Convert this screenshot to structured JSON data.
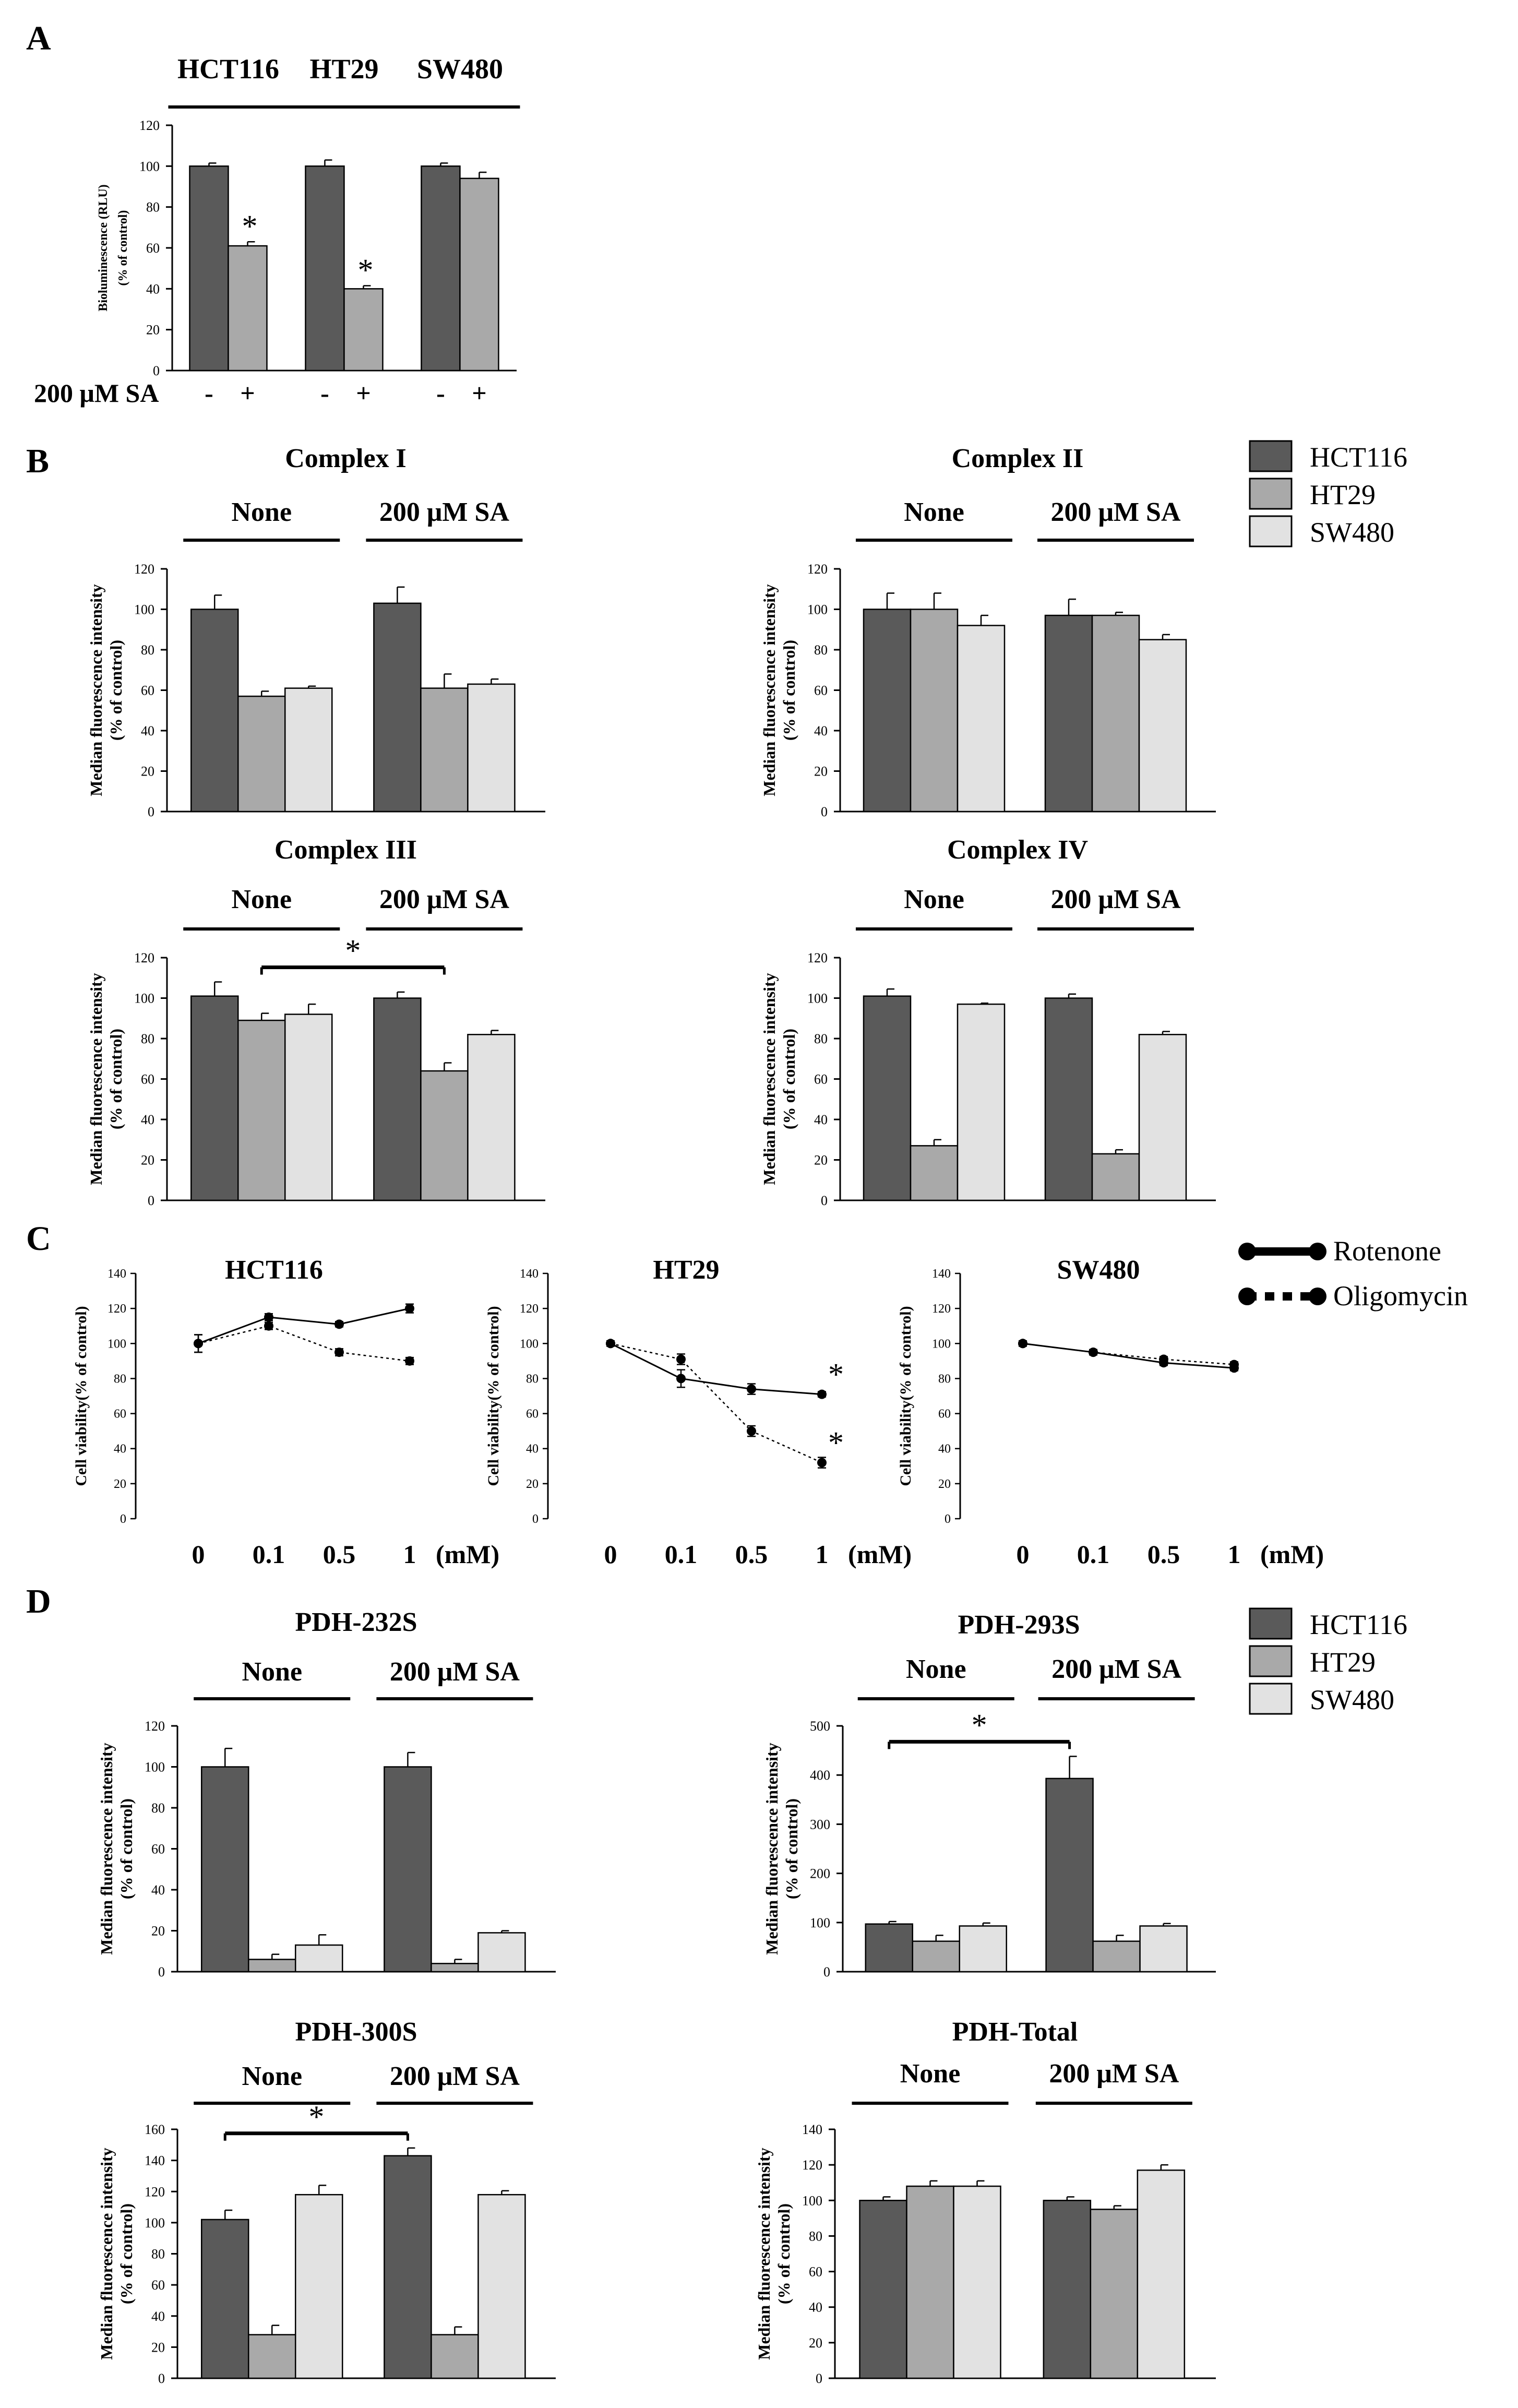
{
  "colors": {
    "HCT116": "#5a5a5a",
    "HT29": "#a9a9a9",
    "SW480": "#e2e2e2",
    "axis": "#000000"
  },
  "legend_B": {
    "items": [
      "HCT116",
      "HT29",
      "SW480"
    ]
  },
  "legend_C": {
    "items": [
      "Rotenone",
      "Oligomycin"
    ]
  },
  "legend_D": {
    "items": [
      "HCT116",
      "HT29",
      "SW480"
    ]
  },
  "panel_labels": {
    "A": "A",
    "B": "B",
    "C": "C",
    "D": "D"
  },
  "chart_data": [
    {
      "id": "A",
      "type": "bar",
      "title": "",
      "ylabel": "Bioluminescence (RLU)",
      "ylabel2": "(% of control)",
      "ylim": [
        0,
        120
      ],
      "yticks": [
        0,
        20,
        40,
        60,
        80,
        100,
        120
      ],
      "group_headers": [
        "HCT116",
        "HT29",
        "SW480"
      ],
      "x_prefix": "200 μM SA",
      "groups": [
        {
          "name": "HCT116",
          "bars": [
            {
              "label": "-",
              "value": 100,
              "err": 1.5,
              "series": "HCT116"
            },
            {
              "label": "+",
              "value": 61,
              "err": 2,
              "series": "HT29",
              "star": "*"
            }
          ]
        },
        {
          "name": "HT29",
          "bars": [
            {
              "label": "-",
              "value": 100,
              "err": 3,
              "series": "HCT116"
            },
            {
              "label": "+",
              "value": 40,
              "err": 1.5,
              "series": "HT29",
              "star": "*"
            }
          ]
        },
        {
          "name": "SW480",
          "bars": [
            {
              "label": "-",
              "value": 100,
              "err": 1.5,
              "series": "HCT116"
            },
            {
              "label": "+",
              "value": 94,
              "err": 3,
              "series": "HT29"
            }
          ]
        }
      ]
    },
    {
      "id": "B1",
      "type": "bar",
      "title": "Complex I",
      "ylabel": "Median fluorescence intensity",
      "ylabel2": "(% of control)",
      "ylim": [
        0,
        120
      ],
      "yticks": [
        0,
        20,
        40,
        60,
        80,
        100,
        120
      ],
      "group_headers": [
        "None",
        "200 μM SA"
      ],
      "groups": [
        {
          "name": "None",
          "bars": [
            {
              "series": "HCT116",
              "value": 100,
              "err": 7
            },
            {
              "series": "HT29",
              "value": 57,
              "err": 2.5
            },
            {
              "series": "SW480",
              "value": 61,
              "err": 1
            }
          ]
        },
        {
          "name": "200 μM SA",
          "bars": [
            {
              "series": "HCT116",
              "value": 103,
              "err": 8
            },
            {
              "series": "HT29",
              "value": 61,
              "err": 7
            },
            {
              "series": "SW480",
              "value": 63,
              "err": 2.5
            }
          ]
        }
      ]
    },
    {
      "id": "B2",
      "type": "bar",
      "title": "Complex II",
      "ylabel": "Median fluorescence intensity",
      "ylabel2": "(% of control)",
      "ylim": [
        0,
        120
      ],
      "yticks": [
        0,
        20,
        40,
        60,
        80,
        100,
        120
      ],
      "group_headers": [
        "None",
        "200 μM SA"
      ],
      "groups": [
        {
          "name": "None",
          "bars": [
            {
              "series": "HCT116",
              "value": 100,
              "err": 8
            },
            {
              "series": "HT29",
              "value": 100,
              "err": 8
            },
            {
              "series": "SW480",
              "value": 92,
              "err": 5
            }
          ]
        },
        {
          "name": "200 μM SA",
          "bars": [
            {
              "series": "HCT116",
              "value": 97,
              "err": 8
            },
            {
              "series": "HT29",
              "value": 97,
              "err": 1.5
            },
            {
              "series": "SW480",
              "value": 85,
              "err": 2.5
            }
          ]
        }
      ]
    },
    {
      "id": "B3",
      "type": "bar",
      "title": "Complex III",
      "ylabel": "Median fluorescence intensity",
      "ylabel2": "(% of control)",
      "ylim": [
        0,
        120
      ],
      "yticks": [
        0,
        20,
        40,
        60,
        80,
        100,
        120
      ],
      "group_headers": [
        "None",
        "200 μM SA"
      ],
      "sig": {
        "from": [
          0,
          1
        ],
        "to": [
          1,
          1
        ],
        "label": "*"
      },
      "groups": [
        {
          "name": "None",
          "bars": [
            {
              "series": "HCT116",
              "value": 101,
              "err": 7
            },
            {
              "series": "HT29",
              "value": 89,
              "err": 3.5
            },
            {
              "series": "SW480",
              "value": 92,
              "err": 5
            }
          ]
        },
        {
          "name": "200 μM SA",
          "bars": [
            {
              "series": "HCT116",
              "value": 100,
              "err": 3
            },
            {
              "series": "HT29",
              "value": 64,
              "err": 4
            },
            {
              "series": "SW480",
              "value": 82,
              "err": 2
            }
          ]
        }
      ]
    },
    {
      "id": "B4",
      "type": "bar",
      "title": "Complex IV",
      "ylabel": "Median fluorescence intensity",
      "ylabel2": "(% of control)",
      "ylim": [
        0,
        120
      ],
      "yticks": [
        0,
        20,
        40,
        60,
        80,
        100,
        120
      ],
      "group_headers": [
        "None",
        "200 μM SA"
      ],
      "groups": [
        {
          "name": "None",
          "bars": [
            {
              "series": "HCT116",
              "value": 101,
              "err": 3.5
            },
            {
              "series": "HT29",
              "value": 27,
              "err": 3
            },
            {
              "series": "SW480",
              "value": 97,
              "err": 0.5
            }
          ]
        },
        {
          "name": "200 μM SA",
          "bars": [
            {
              "series": "HCT116",
              "value": 100,
              "err": 2
            },
            {
              "series": "HT29",
              "value": 23,
              "err": 2
            },
            {
              "series": "SW480",
              "value": 82,
              "err": 1.5
            }
          ]
        }
      ]
    },
    {
      "id": "C1",
      "type": "line",
      "title": "HCT116",
      "ylabel": "Cell viability(% of control)",
      "ylim": [
        0,
        140
      ],
      "yticks": [
        0,
        20,
        40,
        60,
        80,
        100,
        120,
        140
      ],
      "categories": [
        "0",
        "0.1",
        "0.5",
        "1"
      ],
      "unit": "(mM)",
      "series": [
        {
          "name": "Rotenone",
          "style": "solid",
          "values": [
            100,
            115,
            111,
            120
          ],
          "err": [
            5,
            2,
            1.5,
            2.5
          ]
        },
        {
          "name": "Oligomycin",
          "style": "dotted",
          "values": [
            100,
            110,
            95,
            90
          ],
          "err": [
            5,
            2,
            2,
            2
          ]
        }
      ]
    },
    {
      "id": "C2",
      "type": "line",
      "title": "HT29",
      "ylabel": "Cell viability(% of control)",
      "ylim": [
        0,
        140
      ],
      "yticks": [
        0,
        20,
        40,
        60,
        80,
        100,
        120,
        140
      ],
      "categories": [
        "0",
        "0.1",
        "0.5",
        "1"
      ],
      "unit": "(mM)",
      "series": [
        {
          "name": "Rotenone",
          "style": "solid",
          "values": [
            100,
            80,
            74,
            71
          ],
          "err": [
            1.5,
            5,
            3,
            1.5
          ],
          "star_last": "*"
        },
        {
          "name": "Oligomycin",
          "style": "dotted",
          "values": [
            100,
            91,
            50,
            32
          ],
          "err": [
            1.5,
            3,
            3,
            3
          ],
          "star_last": "*"
        }
      ]
    },
    {
      "id": "C3",
      "type": "line",
      "title": "SW480",
      "ylabel": "Cell viability(% of control)",
      "ylim": [
        0,
        140
      ],
      "yticks": [
        0,
        20,
        40,
        60,
        80,
        100,
        120,
        140
      ],
      "categories": [
        "0",
        "0.1",
        "0.5",
        "1"
      ],
      "unit": "(mM)",
      "series": [
        {
          "name": "Rotenone",
          "style": "solid",
          "values": [
            100,
            95,
            89,
            86
          ],
          "err": [
            1.5,
            1.5,
            1.5,
            1.5
          ]
        },
        {
          "name": "Oligomycin",
          "style": "dotted",
          "values": [
            100,
            95,
            91,
            88
          ],
          "err": [
            1.5,
            1.5,
            1.5,
            1.5
          ]
        }
      ]
    },
    {
      "id": "D1",
      "type": "bar",
      "title": "PDH-232S",
      "ylabel": "Median fluorescence intensity",
      "ylabel2": "(% of control)",
      "ylim": [
        0,
        120
      ],
      "yticks": [
        0,
        20,
        40,
        60,
        80,
        100,
        120
      ],
      "group_headers": [
        "None",
        "200 μM SA"
      ],
      "groups": [
        {
          "name": "None",
          "bars": [
            {
              "series": "HCT116",
              "value": 100,
              "err": 9
            },
            {
              "series": "HT29",
              "value": 6,
              "err": 2.5
            },
            {
              "series": "SW480",
              "value": 13,
              "err": 5
            }
          ]
        },
        {
          "name": "200 μM SA",
          "bars": [
            {
              "series": "HCT116",
              "value": 100,
              "err": 7
            },
            {
              "series": "HT29",
              "value": 4,
              "err": 2
            },
            {
              "series": "SW480",
              "value": 19,
              "err": 1
            }
          ]
        }
      ]
    },
    {
      "id": "D2",
      "type": "bar",
      "title": "PDH-293S",
      "ylabel": "Median fluorescence intensity",
      "ylabel2": "(% of control)",
      "ylim": [
        0,
        500
      ],
      "yticks": [
        0,
        100,
        200,
        300,
        400,
        500
      ],
      "group_headers": [
        "None",
        "200 μM SA"
      ],
      "sig": {
        "from": [
          0,
          0
        ],
        "to": [
          1,
          0
        ],
        "label": "*"
      },
      "groups": [
        {
          "name": "None",
          "bars": [
            {
              "series": "HCT116",
              "value": 97,
              "err": 5
            },
            {
              "series": "HT29",
              "value": 62,
              "err": 12
            },
            {
              "series": "SW480",
              "value": 93,
              "err": 6
            }
          ]
        },
        {
          "name": "200 μM SA",
          "bars": [
            {
              "series": "HCT116",
              "value": 393,
              "err": 45
            },
            {
              "series": "HT29",
              "value": 62,
              "err": 12
            },
            {
              "series": "SW480",
              "value": 93,
              "err": 5
            }
          ]
        }
      ]
    },
    {
      "id": "D3",
      "type": "bar",
      "title": "PDH-300S",
      "ylabel": "Median fluorescence intensity",
      "ylabel2": "(% of control)",
      "ylim": [
        0,
        160
      ],
      "yticks": [
        0,
        20,
        40,
        60,
        80,
        100,
        120,
        140,
        160
      ],
      "group_headers": [
        "None",
        "200 μM SA"
      ],
      "sig": {
        "from": [
          0,
          0
        ],
        "to": [
          1,
          0
        ],
        "label": "*"
      },
      "groups": [
        {
          "name": "None",
          "bars": [
            {
              "series": "HCT116",
              "value": 102,
              "err": 6
            },
            {
              "series": "HT29",
              "value": 28,
              "err": 6
            },
            {
              "series": "SW480",
              "value": 118,
              "err": 6
            }
          ]
        },
        {
          "name": "200 μM SA",
          "bars": [
            {
              "series": "HCT116",
              "value": 143,
              "err": 5
            },
            {
              "series": "HT29",
              "value": 28,
              "err": 5
            },
            {
              "series": "SW480",
              "value": 118,
              "err": 2.5
            }
          ]
        }
      ]
    },
    {
      "id": "D4",
      "type": "bar",
      "title": "PDH-Total",
      "ylabel": "Median fluorescence intensity",
      "ylabel2": "(% of control)",
      "ylim": [
        0,
        140
      ],
      "yticks": [
        0,
        20,
        40,
        60,
        80,
        100,
        120,
        140
      ],
      "group_headers": [
        "None",
        "200 μM SA"
      ],
      "groups": [
        {
          "name": "None",
          "bars": [
            {
              "series": "HCT116",
              "value": 100,
              "err": 2
            },
            {
              "series": "HT29",
              "value": 108,
              "err": 3
            },
            {
              "series": "SW480",
              "value": 108,
              "err": 3
            }
          ]
        },
        {
          "name": "200 μM SA",
          "bars": [
            {
              "series": "HCT116",
              "value": 100,
              "err": 2
            },
            {
              "series": "HT29",
              "value": 95,
              "err": 2
            },
            {
              "series": "SW480",
              "value": 117,
              "err": 3
            }
          ]
        }
      ]
    }
  ]
}
